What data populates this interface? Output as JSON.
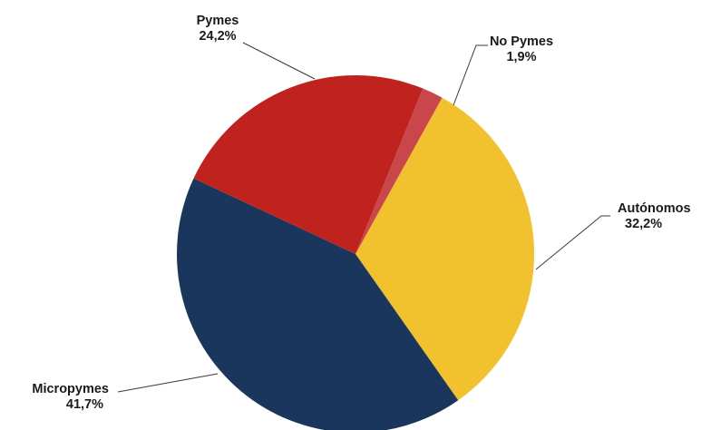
{
  "chart_data": {
    "type": "pie",
    "title": "",
    "start_angle_deg": 29,
    "direction": "clockwise",
    "slices": [
      {
        "name": "Autónomos",
        "value": 32.2,
        "value_label": "32,2%",
        "color": "#f2c12e"
      },
      {
        "name": "Micropymes",
        "value": 41.7,
        "value_label": "41,7%",
        "color": "#1a365d"
      },
      {
        "name": "Pymes",
        "value": 24.2,
        "value_label": "24,2%",
        "color": "#c0231e"
      },
      {
        "name": "No Pymes",
        "value": 1.9,
        "value_label": "1,9%",
        "color": "#c9464a"
      }
    ]
  }
}
